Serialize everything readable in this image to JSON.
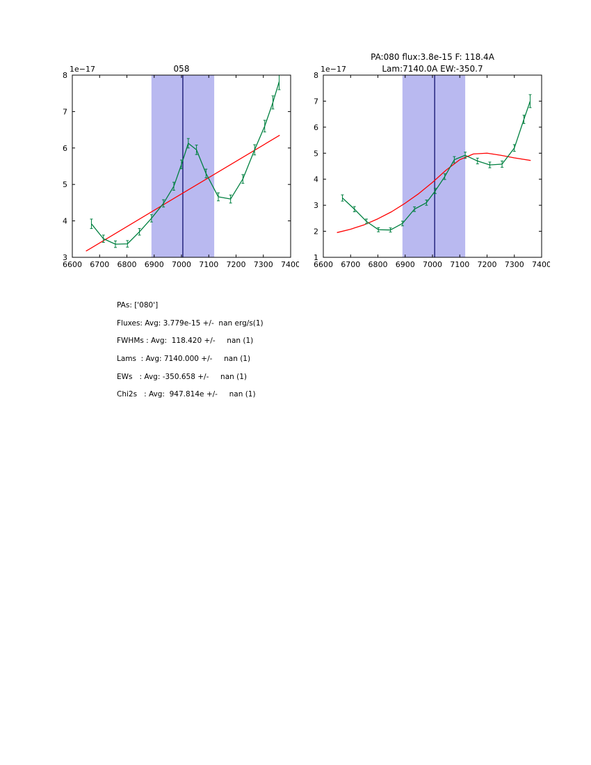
{
  "chart_data": [
    {
      "type": "line",
      "title": "058",
      "offset_label": "1e−17",
      "xlim": [
        6600,
        7400
      ],
      "ylim": [
        3,
        8
      ],
      "xticks": [
        6600,
        6700,
        6800,
        6900,
        7000,
        7100,
        7200,
        7300,
        7400
      ],
      "yticks": [
        3,
        4,
        5,
        6,
        7,
        8
      ],
      "band": {
        "xmin": 6890,
        "xmax": 7120,
        "color": "#b9b9f0"
      },
      "vline": {
        "x": 7005,
        "color": "#000060"
      },
      "series": [
        {
          "name": "continuum-fit",
          "color": "#ff0000",
          "x": [
            6650,
            7000,
            7360
          ],
          "y": [
            3.17,
            4.74,
            6.35
          ]
        },
        {
          "name": "spectrum",
          "color": "#008040",
          "x": [
            6670,
            6714,
            6758,
            6802,
            6846,
            6890,
            6934,
            6972,
            7000,
            7025,
            7055,
            7090,
            7135,
            7180,
            7225,
            7268,
            7305,
            7335,
            7358
          ],
          "y": [
            3.92,
            3.51,
            3.36,
            3.37,
            3.7,
            4.07,
            4.48,
            4.95,
            5.55,
            6.13,
            5.95,
            5.3,
            4.66,
            4.6,
            5.15,
            5.95,
            6.6,
            7.25,
            7.82
          ],
          "yerr": [
            0.13,
            0.1,
            0.09,
            0.09,
            0.09,
            0.1,
            0.1,
            0.11,
            0.12,
            0.13,
            0.13,
            0.12,
            0.11,
            0.11,
            0.12,
            0.14,
            0.16,
            0.18,
            0.22
          ]
        }
      ]
    },
    {
      "type": "line",
      "title_line1": "PA:080 flux:3.8e-15 F: 118.4A",
      "title_line2": "Lam:7140.0A EW:-350.7",
      "offset_label": "1e−17",
      "xlim": [
        6600,
        7400
      ],
      "ylim": [
        1,
        8
      ],
      "xticks": [
        6600,
        6700,
        6800,
        6900,
        7000,
        7100,
        7200,
        7300,
        7400
      ],
      "yticks": [
        1,
        2,
        3,
        4,
        5,
        6,
        7,
        8
      ],
      "band": {
        "xmin": 6890,
        "xmax": 7120,
        "color": "#b9b9f0"
      },
      "vline": {
        "x": 7008,
        "color": "#000060"
      },
      "series": [
        {
          "name": "model-fit",
          "color": "#ff0000",
          "x": [
            6650,
            6700,
            6750,
            6800,
            6850,
            6900,
            6950,
            7000,
            7050,
            7100,
            7150,
            7200,
            7250,
            7300,
            7360
          ],
          "y": [
            1.95,
            2.08,
            2.25,
            2.48,
            2.75,
            3.08,
            3.45,
            3.88,
            4.35,
            4.75,
            4.97,
            5.0,
            4.92,
            4.82,
            4.72
          ]
        },
        {
          "name": "spectrum",
          "color": "#008040",
          "x": [
            6670,
            6714,
            6758,
            6802,
            6846,
            6890,
            6934,
            6978,
            7010,
            7045,
            7080,
            7120,
            7165,
            7210,
            7255,
            7300,
            7335,
            7358
          ],
          "y": [
            3.28,
            2.85,
            2.38,
            2.06,
            2.05,
            2.3,
            2.85,
            3.1,
            3.55,
            4.1,
            4.75,
            4.92,
            4.7,
            4.55,
            4.58,
            5.2,
            6.3,
            7.0
          ],
          "yerr": [
            0.12,
            0.1,
            0.09,
            0.08,
            0.08,
            0.09,
            0.09,
            0.1,
            0.1,
            0.11,
            0.12,
            0.12,
            0.11,
            0.11,
            0.12,
            0.13,
            0.16,
            0.25
          ]
        }
      ]
    }
  ],
  "info_lines": [
    "PAs: ['080']",
    "Fluxes: Avg: 3.779e-15 +/-  nan erg/s(1)",
    "FWHMs : Avg:  118.420 +/-     nan (1)",
    "Lams  : Avg: 7140.000 +/-     nan (1)",
    "EWs   : Avg: -350.658 +/-     nan (1)",
    "Chi2s   : Avg:  947.814e +/-     nan (1)"
  ]
}
